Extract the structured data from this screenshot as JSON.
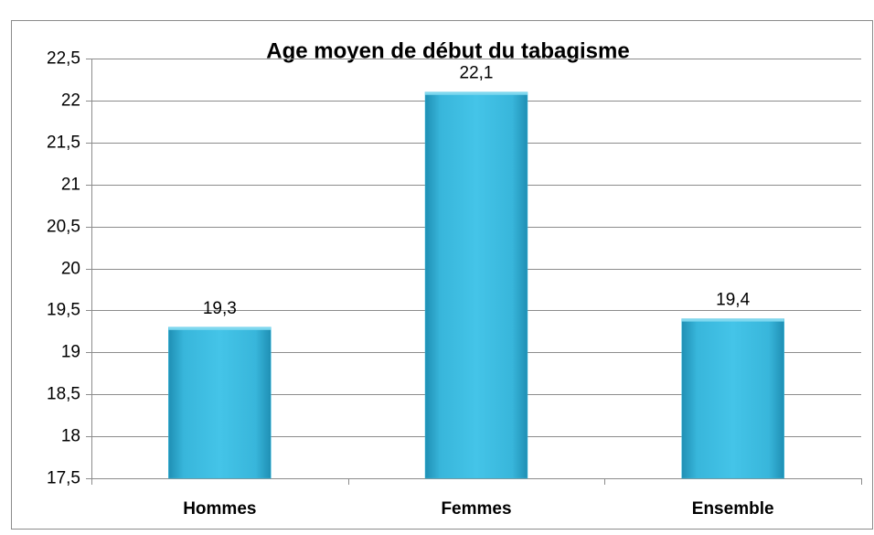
{
  "chart_data": {
    "type": "bar",
    "title": "Age moyen de début du tabagisme",
    "categories": [
      "Hommes",
      "Femmes",
      "Ensemble"
    ],
    "values": [
      19.3,
      22.1,
      19.4
    ],
    "value_labels": [
      "19,3",
      "22,1",
      "19,4"
    ],
    "color": "#3bbde0",
    "ylim": [
      17.5,
      22.5
    ],
    "yticks": [
      {
        "value": 17.5,
        "label": "17,5"
      },
      18,
      {
        "value": 18.5,
        "label": "18,5"
      },
      19,
      {
        "value": 19.5,
        "label": "19,5"
      },
      20,
      {
        "value": 20.5,
        "label": "20,5"
      },
      21,
      {
        "value": 21.5,
        "label": "21,5"
      },
      22,
      {
        "value": 22.5,
        "label": "22,5"
      }
    ],
    "grid": true
  }
}
